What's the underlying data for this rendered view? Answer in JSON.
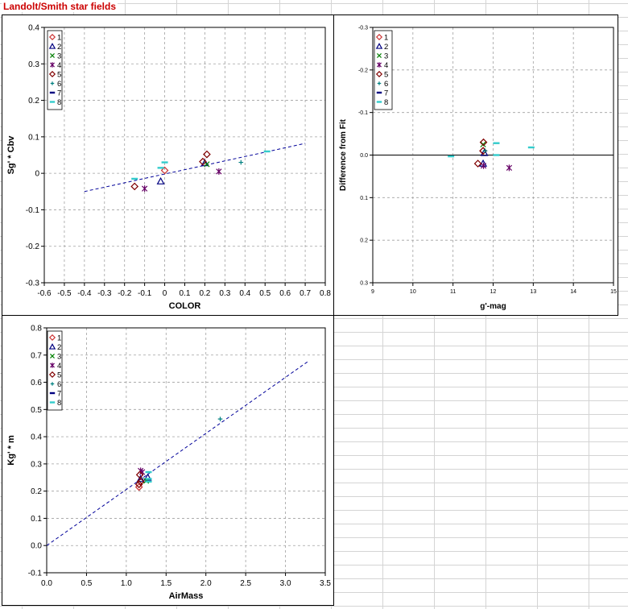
{
  "title": "Landolt/Smith star fields",
  "chart_data": [
    {
      "type": "scatter",
      "xlabel": "COLOR",
      "ylabel": "Sg' * Cbv",
      "xlim": [
        -0.6,
        0.8
      ],
      "ylim": [
        -0.3,
        0.4
      ],
      "xticks": [
        -0.6,
        -0.5,
        -0.4,
        -0.3,
        -0.2,
        -0.1,
        0,
        0.1,
        0.2,
        0.3,
        0.4,
        0.5,
        0.6,
        0.7,
        0.8
      ],
      "yticks": [
        -0.3,
        -0.2,
        -0.1,
        0,
        0.1,
        0.2,
        0.3,
        0.4
      ],
      "grid": true,
      "legend": "top-left",
      "series": [
        {
          "name": "1",
          "marker": "diamond",
          "color": "#cc3333",
          "points": [
            [
              0.0,
              0.008
            ]
          ]
        },
        {
          "name": "2",
          "marker": "triangle",
          "color": "#000080",
          "points": [
            [
              0.2,
              0.028
            ],
            [
              -0.02,
              -0.022
            ]
          ]
        },
        {
          "name": "3",
          "marker": "x",
          "color": "#008000",
          "points": [
            [
              0.21,
              0.025
            ]
          ]
        },
        {
          "name": "4",
          "marker": "star",
          "color": "#660066",
          "points": [
            [
              -0.1,
              -0.042
            ],
            [
              0.27,
              0.005
            ]
          ]
        },
        {
          "name": "5",
          "marker": "diamond",
          "color": "#800000",
          "points": [
            [
              -0.15,
              -0.036
            ],
            [
              0.21,
              0.052
            ],
            [
              0.19,
              0.032
            ]
          ]
        },
        {
          "name": "6",
          "marker": "plus",
          "color": "#008080",
          "points": [
            [
              0.38,
              0.03
            ]
          ]
        },
        {
          "name": "7",
          "marker": "dash",
          "color": "#000080",
          "points": []
        },
        {
          "name": "8",
          "marker": "dash",
          "color": "#33cccc",
          "points": [
            [
              -0.02,
              0.015
            ],
            [
              0.0,
              0.03
            ],
            [
              -0.15,
              -0.015
            ],
            [
              0.51,
              0.06
            ]
          ]
        }
      ],
      "trendline": {
        "x": [
          -0.4,
          0.7
        ],
        "y": [
          -0.05,
          0.082
        ]
      }
    },
    {
      "type": "scatter",
      "xlabel": "g'-mag",
      "ylabel": "Difference from Fit",
      "xlim": [
        9,
        15
      ],
      "ylim": [
        0.3,
        -0.3
      ],
      "reversed_y": true,
      "xticks": [
        9,
        10,
        11,
        12,
        13,
        14,
        15
      ],
      "yticks": [
        -0.3,
        -0.2,
        -0.1,
        0.0,
        0.1,
        0.2,
        0.3
      ],
      "ytick_labels": [
        "-0.3",
        "-0.2",
        "-0.1",
        "0.0",
        "0.1",
        "0.2",
        "0.3"
      ],
      "zero_line": 0,
      "grid": true,
      "legend": "top-left",
      "series": [
        {
          "name": "1",
          "marker": "diamond",
          "color": "#cc3333",
          "points": [
            [
              11.75,
              -0.01
            ]
          ]
        },
        {
          "name": "2",
          "marker": "triangle",
          "color": "#000080",
          "points": [
            [
              11.75,
              0.02
            ],
            [
              11.78,
              -0.005
            ]
          ]
        },
        {
          "name": "3",
          "marker": "x",
          "color": "#008000",
          "points": [
            [
              11.75,
              -0.025
            ]
          ]
        },
        {
          "name": "4",
          "marker": "star",
          "color": "#660066",
          "points": [
            [
              11.76,
              0.025
            ],
            [
              12.4,
              0.03
            ]
          ]
        },
        {
          "name": "5",
          "marker": "diamond",
          "color": "#800000",
          "points": [
            [
              11.62,
              0.02
            ],
            [
              11.76,
              -0.03
            ],
            [
              11.75,
              -0.01
            ]
          ]
        },
        {
          "name": "6",
          "marker": "plus",
          "color": "#008080",
          "points": [
            [
              11.8,
              -0.01
            ]
          ]
        },
        {
          "name": "7",
          "marker": "dash",
          "color": "#000080",
          "points": []
        },
        {
          "name": "8",
          "marker": "dash",
          "color": "#33cccc",
          "points": [
            [
              10.95,
              0.003
            ],
            [
              12.08,
              -0.028
            ],
            [
              12.08,
              0.0
            ],
            [
              12.95,
              -0.018
            ]
          ]
        }
      ]
    },
    {
      "type": "scatter",
      "xlabel": "AirMass",
      "ylabel": "Kg' * m",
      "xlim": [
        0,
        3.5
      ],
      "ylim": [
        -0.1,
        0.8
      ],
      "xticks": [
        0,
        0.5,
        1,
        1.5,
        2,
        2.5,
        3,
        3.5
      ],
      "xtick_labels": [
        "0.0",
        "0.5",
        "1.0",
        "1.5",
        "2.0",
        "2.5",
        "3.0",
        "3.5"
      ],
      "yticks": [
        -0.1,
        0,
        0.1,
        0.2,
        0.3,
        0.4,
        0.5,
        0.6,
        0.7,
        0.8
      ],
      "ytick_labels": [
        "-0.1",
        "0.0",
        "0.1",
        "0.2",
        "0.3",
        "0.4",
        "0.5",
        "0.6",
        "0.7",
        "0.8"
      ],
      "grid": true,
      "legend": "top-left",
      "series": [
        {
          "name": "1",
          "marker": "diamond",
          "color": "#cc3333",
          "points": [
            [
              1.16,
              0.215
            ]
          ]
        },
        {
          "name": "2",
          "marker": "triangle",
          "color": "#000080",
          "points": [
            [
              1.18,
              0.245
            ],
            [
              1.27,
              0.25
            ]
          ]
        },
        {
          "name": "3",
          "marker": "x",
          "color": "#008000",
          "points": [
            [
              1.25,
              0.238
            ]
          ]
        },
        {
          "name": "4",
          "marker": "star",
          "color": "#660066",
          "points": [
            [
              1.18,
              0.275
            ],
            [
              1.2,
              0.27
            ]
          ]
        },
        {
          "name": "5",
          "marker": "diamond",
          "color": "#800000",
          "points": [
            [
              1.17,
              0.26
            ],
            [
              1.18,
              0.235
            ],
            [
              1.16,
              0.225
            ]
          ]
        },
        {
          "name": "6",
          "marker": "plus",
          "color": "#008080",
          "points": [
            [
              2.18,
              0.465
            ]
          ]
        },
        {
          "name": "7",
          "marker": "dash",
          "color": "#000080",
          "points": []
        },
        {
          "name": "8",
          "marker": "dash",
          "color": "#33cccc",
          "points": [
            [
              1.28,
              0.27
            ],
            [
              1.28,
              0.245
            ],
            [
              1.28,
              0.235
            ]
          ]
        }
      ],
      "trendline": {
        "x": [
          0,
          3.3
        ],
        "y": [
          0,
          0.68
        ]
      }
    }
  ]
}
